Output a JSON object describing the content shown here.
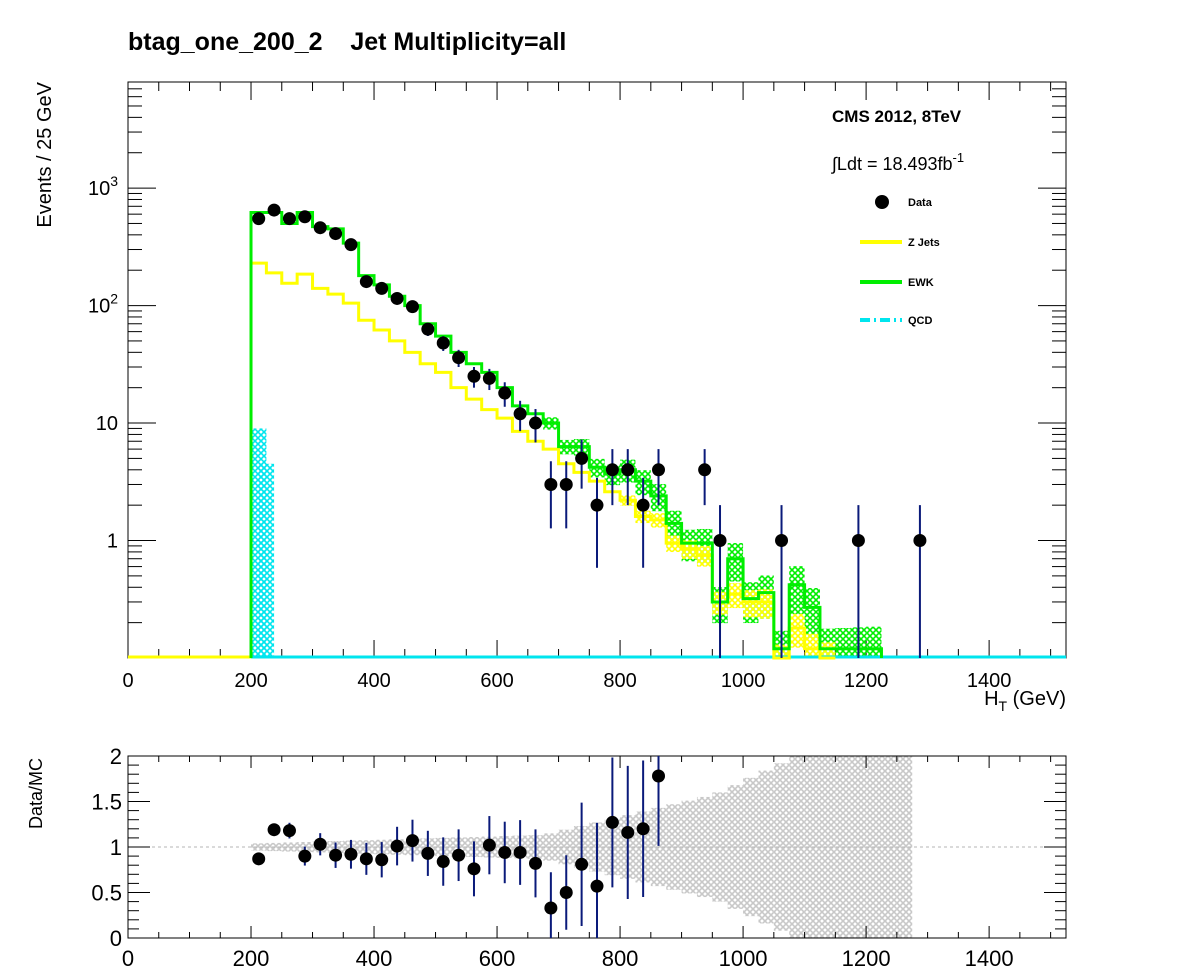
{
  "title": "btag_one_200_2    Jet Multiplicity=all",
  "colors": {
    "data": "#000000",
    "data_err": "#0a1a7a",
    "zjets": "#ffff00",
    "ewk": "#00ee00",
    "qcd": "#00e5ee",
    "ratio_band": "#c8c8c8"
  },
  "chart_data": [
    {
      "type": "line",
      "title": "btag_one_200_2    Jet Multiplicity=all",
      "xlabel": "H_T (GeV)",
      "ylabel": "Events / 25 GeV",
      "xlim": [
        0,
        1525
      ],
      "ylim": [
        0.1,
        8000
      ],
      "log_y": true,
      "x_ticks": [
        "0",
        "200",
        "400",
        "600",
        "800",
        "1000",
        "1200",
        "1400"
      ],
      "y_ticks": [
        "1",
        "10",
        "10^2",
        "10^3"
      ],
      "annotations": [
        "CMS 2012, 8TeV",
        "∫Ldt = 18.493fb^-1"
      ],
      "legend": {
        "placement": "top-right",
        "entries": [
          "Data",
          "Z Jets",
          "EWK",
          "QCD"
        ]
      },
      "series": [
        {
          "name": "Data",
          "marker": "point",
          "x": [
            212.5,
            237.5,
            262.5,
            287.5,
            312.5,
            337.5,
            362.5,
            387.5,
            412.5,
            437.5,
            462.5,
            487.5,
            512.5,
            537.5,
            562.5,
            587.5,
            612.5,
            637.5,
            662.5,
            687.5,
            712.5,
            737.5,
            762.5,
            787.5,
            812.5,
            837.5,
            862.5,
            937.5,
            962.5,
            1062.5,
            1187.5,
            1287.5
          ],
          "y": [
            550,
            650,
            550,
            570,
            460,
            410,
            330,
            160,
            140,
            115,
            98,
            63,
            48,
            36,
            25,
            24,
            18,
            12,
            10,
            3,
            3,
            5,
            2,
            4,
            4,
            2,
            4,
            4,
            1,
            1,
            1,
            1
          ]
        },
        {
          "name": "Z Jets",
          "bin_width": 25,
          "x": [
            200,
            225,
            250,
            275,
            300,
            325,
            350,
            375,
            400,
            425,
            450,
            475,
            500,
            525,
            550,
            575,
            600,
            625,
            650,
            675,
            700,
            725,
            750,
            775,
            800,
            825,
            850,
            875,
            900,
            925,
            950,
            975,
            1000,
            1025,
            1050,
            1075,
            1100,
            1125
          ],
          "y": [
            230,
            190,
            155,
            185,
            140,
            125,
            105,
            75,
            62,
            50,
            40,
            32,
            27,
            20,
            16,
            13,
            11,
            8.5,
            7,
            6,
            4.5,
            3.8,
            3.2,
            2.6,
            2.2,
            1.6,
            1.5,
            0.95,
            0.85,
            0.75,
            0.3,
            0.35,
            0.3,
            0.3,
            0.1,
            0.18,
            0.12,
            0.1
          ]
        },
        {
          "name": "EWK",
          "bin_width": 25,
          "x": [
            200,
            225,
            250,
            275,
            300,
            325,
            350,
            375,
            400,
            425,
            450,
            475,
            500,
            525,
            550,
            575,
            600,
            625,
            650,
            675,
            700,
            725,
            750,
            775,
            800,
            825,
            850,
            875,
            900,
            925,
            950,
            975,
            1000,
            1025,
            1050,
            1075,
            1100,
            1125,
            1150,
            1175,
            1200
          ],
          "y": [
            620,
            620,
            500,
            620,
            470,
            450,
            340,
            180,
            150,
            120,
            100,
            70,
            55,
            40,
            32,
            27,
            20,
            14,
            12,
            10,
            6.3,
            6.3,
            4.2,
            3.7,
            4,
            3.2,
            2.4,
            1.4,
            0.95,
            0.95,
            0.3,
            0.7,
            0.32,
            0.36,
            0.12,
            0.42,
            0.27,
            0.12,
            0.12,
            0.12,
            0.12
          ]
        },
        {
          "name": "QCD",
          "bin_width": 25,
          "x": [
            200,
            212.5,
            225
          ],
          "y": [
            9,
            4.5,
            0.1
          ]
        }
      ]
    },
    {
      "type": "scatter",
      "title": "",
      "xlabel": "",
      "ylabel": "Data/MC",
      "xlim": [
        0,
        1525
      ],
      "ylim": [
        0,
        2
      ],
      "x_ticks": [
        "0",
        "200",
        "400",
        "600",
        "800",
        "1000",
        "1200",
        "1400"
      ],
      "y_ticks": [
        "0",
        "0.5",
        "1",
        "1.5",
        "2"
      ],
      "series": [
        {
          "marker": "point",
          "x": [
            212.5,
            237.5,
            262.5,
            287.5,
            312.5,
            337.5,
            362.5,
            387.5,
            412.5,
            437.5,
            462.5,
            487.5,
            512.5,
            537.5,
            562.5,
            587.5,
            612.5,
            637.5,
            662.5,
            687.5,
            712.5,
            737.5,
            762.5,
            787.5,
            812.5,
            837.5,
            862.5
          ],
          "y": [
            0.87,
            1.19,
            1.18,
            0.9,
            1.03,
            0.91,
            0.92,
            0.87,
            0.86,
            1.01,
            1.07,
            0.93,
            0.84,
            0.91,
            0.76,
            1.02,
            0.94,
            0.94,
            0.82,
            0.33,
            0.5,
            0.81,
            0.57,
            1.27,
            1.16,
            1.2,
            1.78
          ]
        }
      ]
    }
  ]
}
